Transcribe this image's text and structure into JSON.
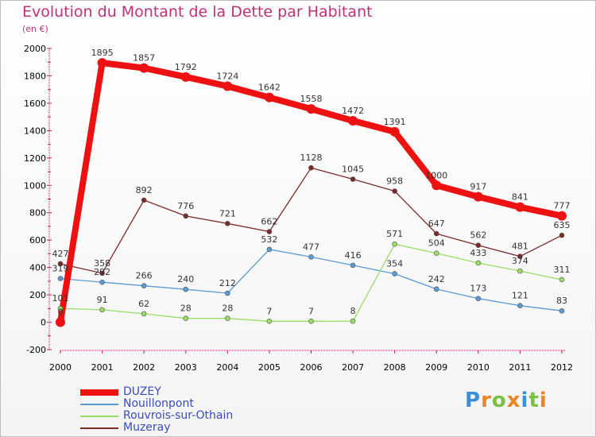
{
  "title": "Evolution du Montant de la Dette par Habitant",
  "unit": "(en €)",
  "logo": "Proxiti",
  "chart_data": {
    "type": "line",
    "title": "Evolution du Montant de la Dette par Habitant",
    "ylabel": "(en €)",
    "xlabel": "",
    "x": [
      "2000",
      "2001",
      "2002",
      "2003",
      "2004",
      "2005",
      "2006",
      "2007",
      "2008",
      "2009",
      "2010",
      "2011",
      "2012"
    ],
    "ylim": [
      -200,
      2000
    ],
    "yticks": [
      -200,
      0,
      200,
      400,
      600,
      800,
      1000,
      1200,
      1400,
      1600,
      1800,
      2000
    ],
    "grid": false,
    "legend_position": "bottom-left",
    "series": [
      {
        "name": "DUZEY",
        "color": "#ee1111",
        "values": [
          0,
          1895,
          1857,
          1792,
          1724,
          1642,
          1558,
          1472,
          1391,
          1000,
          917,
          841,
          777
        ]
      },
      {
        "name": "Nouillonpont",
        "color": "#5b9bd5",
        "values": [
          319,
          292,
          266,
          240,
          212,
          532,
          477,
          416,
          354,
          242,
          173,
          121,
          83
        ]
      },
      {
        "name": "Rouvrois-sur-Othain",
        "color": "#99dd66",
        "values": [
          101,
          91,
          62,
          28,
          28,
          7,
          7,
          8,
          571,
          504,
          433,
          374,
          311
        ]
      },
      {
        "name": "Muzeray",
        "color": "#7b2a2a",
        "values": [
          427,
          358,
          892,
          776,
          721,
          662,
          1128,
          1045,
          958,
          647,
          562,
          481,
          635
        ]
      }
    ]
  }
}
